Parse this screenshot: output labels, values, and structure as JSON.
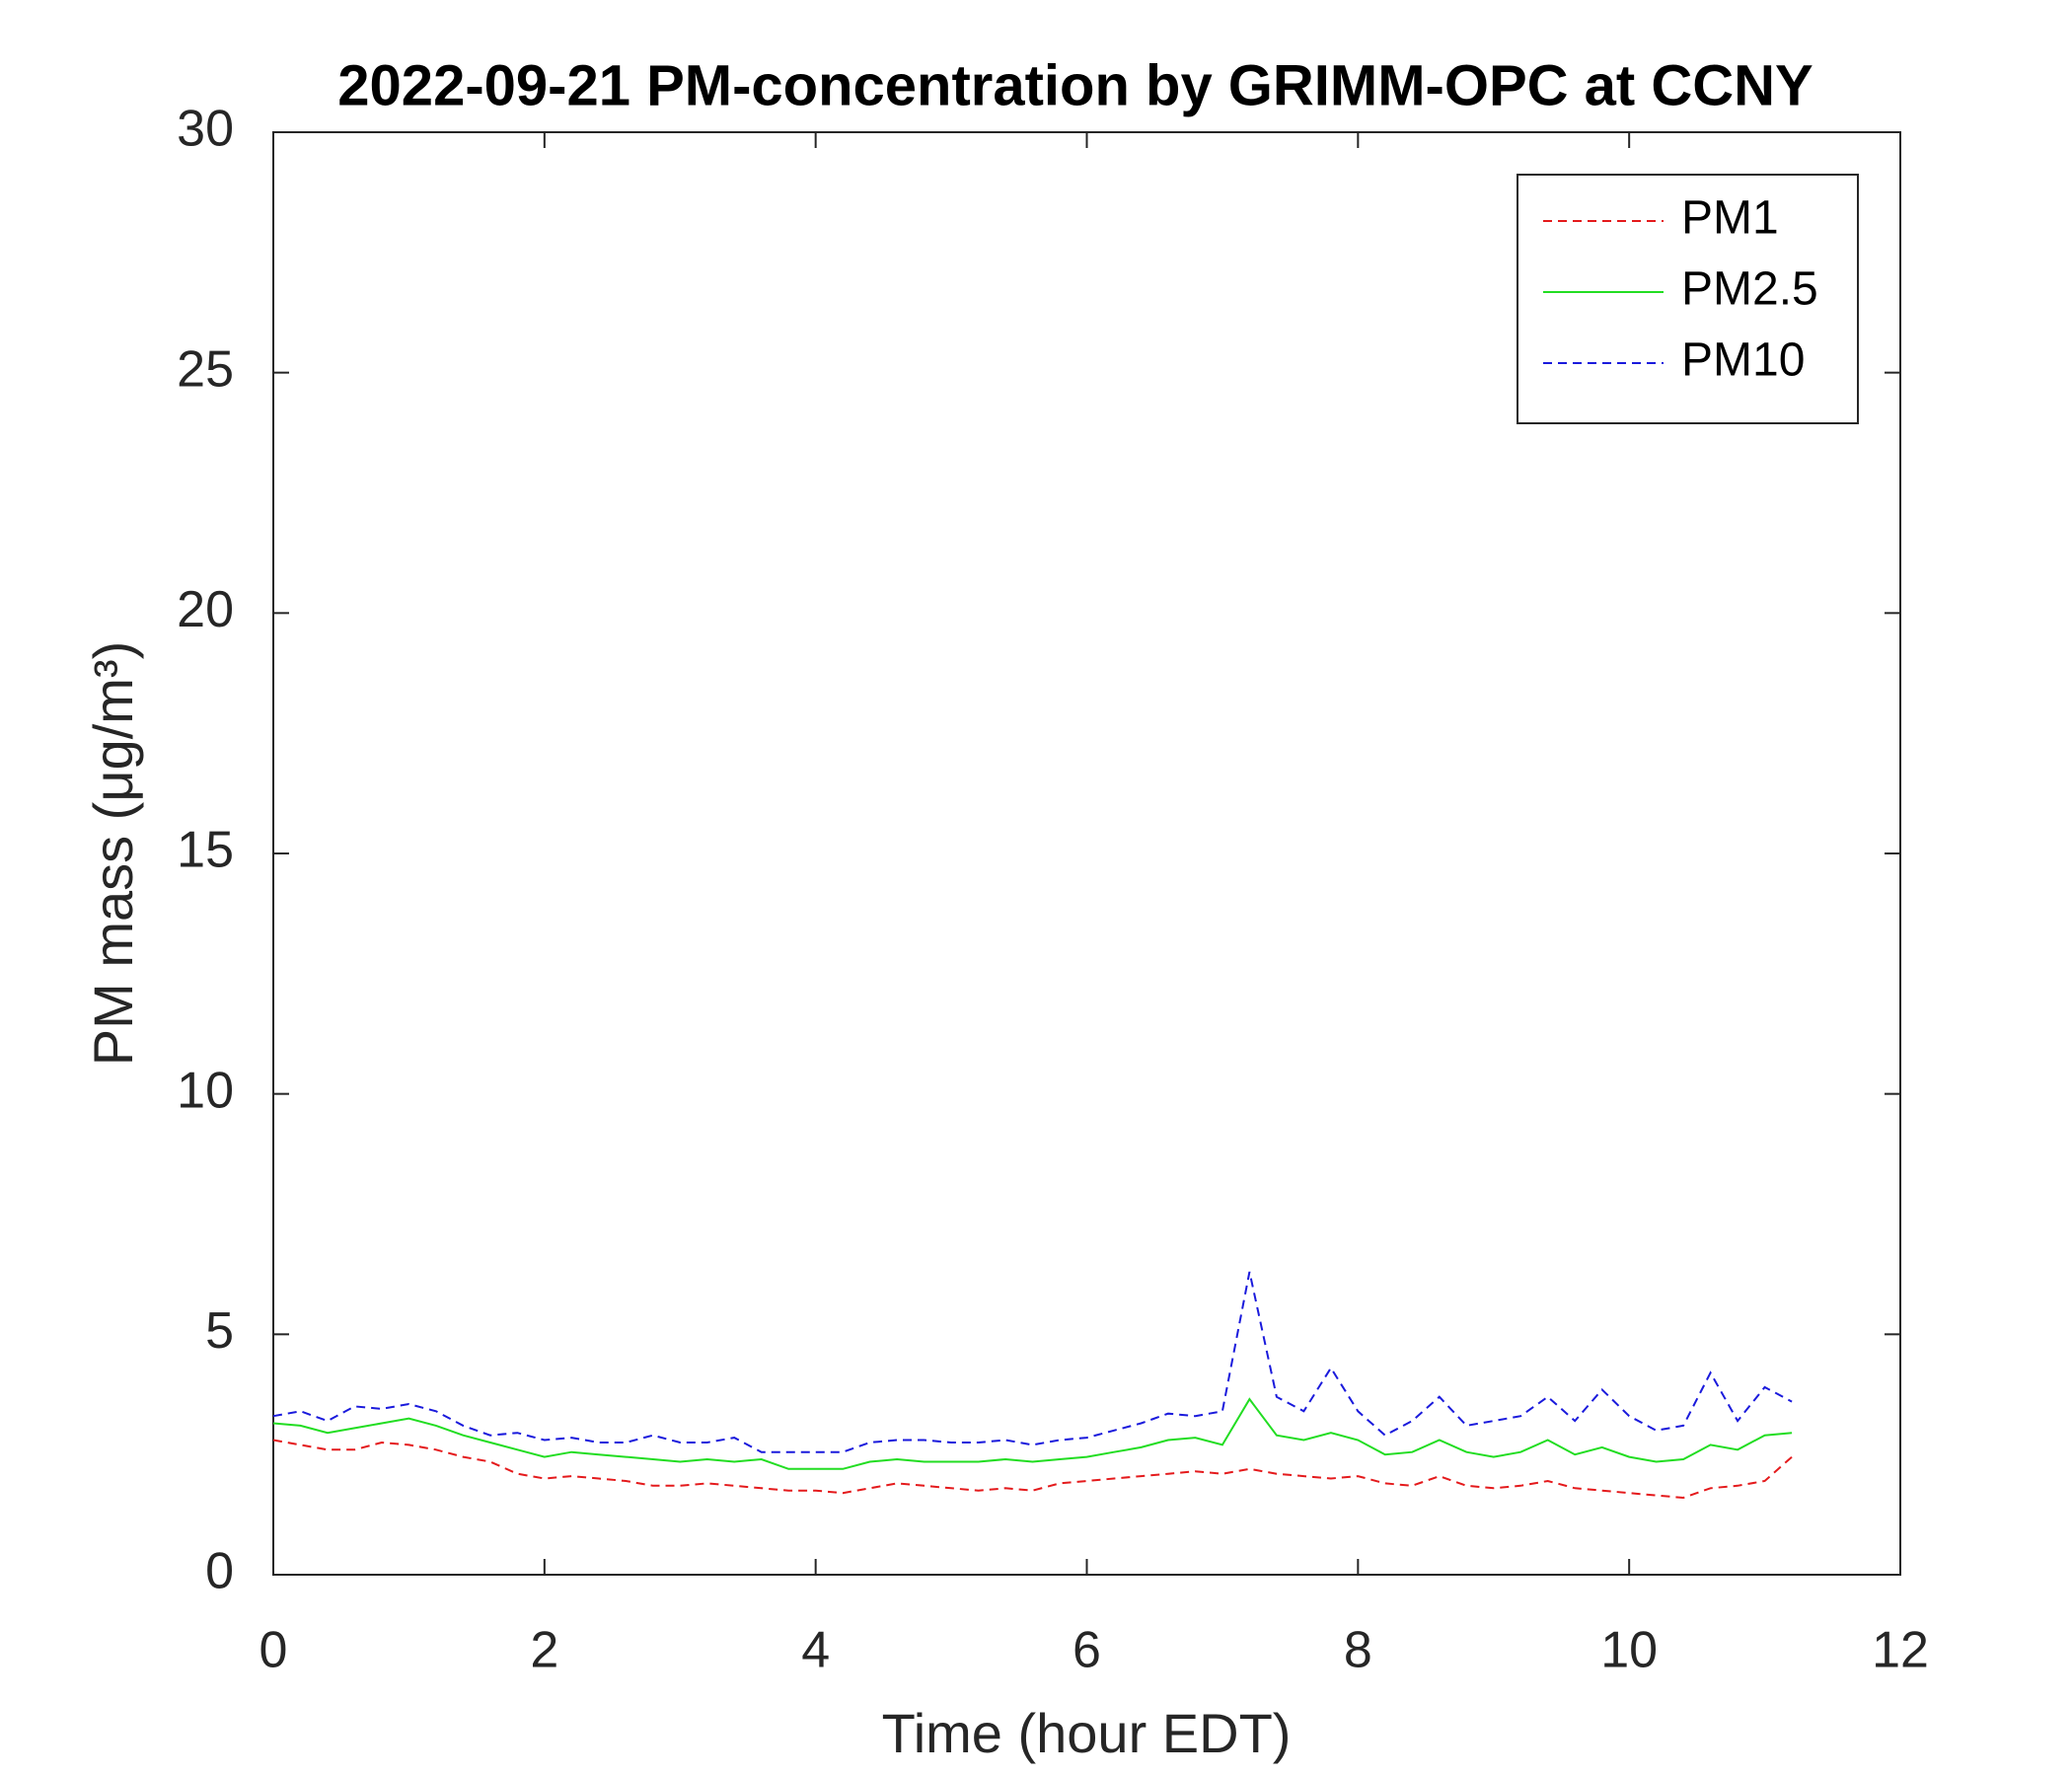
{
  "chart_data": {
    "type": "line",
    "title": "2022-09-21 PM-concentration by GRIMM-OPC at CCNY",
    "xlabel": "Time (hour EDT)",
    "ylabel": "PM mass (μg/m³)",
    "x": [
      0,
      0.2,
      0.4,
      0.6,
      0.8,
      1.0,
      1.2,
      1.4,
      1.6,
      1.8,
      2.0,
      2.2,
      2.4,
      2.6,
      2.8,
      3.0,
      3.2,
      3.4,
      3.6,
      3.8,
      4.0,
      4.2,
      4.4,
      4.6,
      4.8,
      5.0,
      5.2,
      5.4,
      5.6,
      5.8,
      6.0,
      6.2,
      6.4,
      6.6,
      6.8,
      7.0,
      7.2,
      7.4,
      7.6,
      7.8,
      8.0,
      8.2,
      8.4,
      8.6,
      8.8,
      9.0,
      9.2,
      9.4,
      9.6,
      9.8,
      10.0,
      10.2,
      10.4,
      10.6,
      10.8,
      11.0,
      11.2
    ],
    "series": [
      {
        "name": "PM1",
        "color": "#e41a1c",
        "linestyle": "dashed",
        "values": [
          2.8,
          2.7,
          2.6,
          2.6,
          2.75,
          2.7,
          2.6,
          2.45,
          2.35,
          2.1,
          2.0,
          2.05,
          2.0,
          1.95,
          1.85,
          1.85,
          1.9,
          1.85,
          1.8,
          1.75,
          1.75,
          1.7,
          1.8,
          1.9,
          1.85,
          1.8,
          1.75,
          1.8,
          1.75,
          1.9,
          1.95,
          2.0,
          2.05,
          2.1,
          2.15,
          2.1,
          2.2,
          2.1,
          2.05,
          2.0,
          2.05,
          1.9,
          1.85,
          2.05,
          1.85,
          1.8,
          1.85,
          1.95,
          1.8,
          1.75,
          1.7,
          1.65,
          1.6,
          1.8,
          1.85,
          1.95,
          2.45
        ]
      },
      {
        "name": "PM2.5",
        "color": "#22dd22",
        "linestyle": "solid",
        "values": [
          3.15,
          3.1,
          2.95,
          3.05,
          3.15,
          3.25,
          3.1,
          2.9,
          2.75,
          2.6,
          2.45,
          2.55,
          2.5,
          2.45,
          2.4,
          2.35,
          2.4,
          2.35,
          2.4,
          2.2,
          2.2,
          2.2,
          2.35,
          2.4,
          2.35,
          2.35,
          2.35,
          2.4,
          2.35,
          2.4,
          2.45,
          2.55,
          2.65,
          2.8,
          2.85,
          2.7,
          3.65,
          2.9,
          2.8,
          2.95,
          2.8,
          2.5,
          2.55,
          2.8,
          2.55,
          2.45,
          2.55,
          2.8,
          2.5,
          2.65,
          2.45,
          2.35,
          2.4,
          2.7,
          2.6,
          2.9,
          2.95
        ]
      },
      {
        "name": "PM10",
        "color": "#1a1adc",
        "linestyle": "dashed",
        "values": [
          3.3,
          3.4,
          3.2,
          3.5,
          3.45,
          3.55,
          3.4,
          3.1,
          2.9,
          2.95,
          2.8,
          2.85,
          2.75,
          2.75,
          2.9,
          2.75,
          2.75,
          2.85,
          2.55,
          2.55,
          2.55,
          2.55,
          2.75,
          2.8,
          2.8,
          2.75,
          2.75,
          2.8,
          2.7,
          2.8,
          2.85,
          3.0,
          3.15,
          3.35,
          3.3,
          3.4,
          6.3,
          3.7,
          3.4,
          4.3,
          3.4,
          2.9,
          3.2,
          3.7,
          3.1,
          3.2,
          3.3,
          3.7,
          3.2,
          3.85,
          3.3,
          3.0,
          3.1,
          4.2,
          3.2,
          3.9,
          3.6
        ]
      }
    ],
    "xlim": [
      0,
      12
    ],
    "xticks": [
      0,
      2,
      4,
      6,
      8,
      10,
      12
    ],
    "ylim": [
      0,
      30
    ],
    "yticks": [
      0,
      5,
      10,
      15,
      20,
      25,
      30
    ],
    "grid": false,
    "legend": "upper right"
  }
}
